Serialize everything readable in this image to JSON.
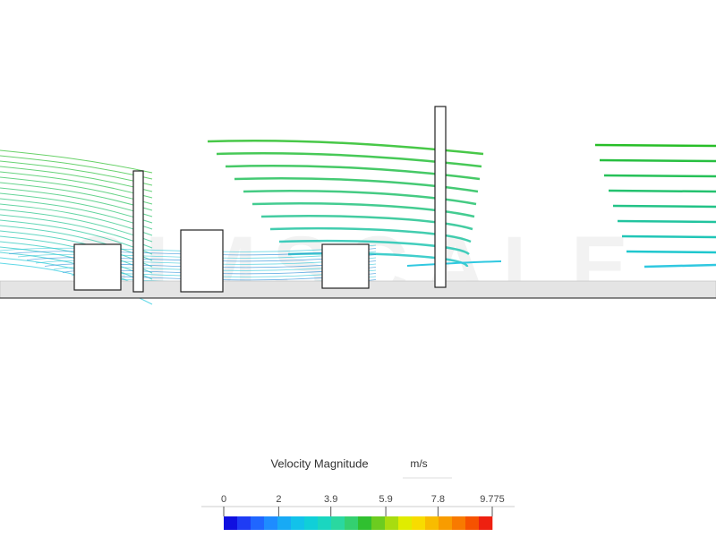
{
  "watermark": "SIMSCALE",
  "legend": {
    "title": "Velocity Magnitude",
    "unit": "m/s",
    "ticks": [
      0,
      2,
      3.9,
      5.9,
      7.8,
      9.775
    ],
    "colors": [
      "#1010e0",
      "#1f3cf5",
      "#2066ff",
      "#1e8cff",
      "#18aaf5",
      "#12c2ea",
      "#10cfd8",
      "#1ad6c0",
      "#2ad8a0",
      "#34d070",
      "#30c030",
      "#6ccc20",
      "#a8dc10",
      "#e0ec00",
      "#f8dc00",
      "#f8bc00",
      "#f89c00",
      "#f87a00",
      "#f65200",
      "#ee2010"
    ]
  }
}
